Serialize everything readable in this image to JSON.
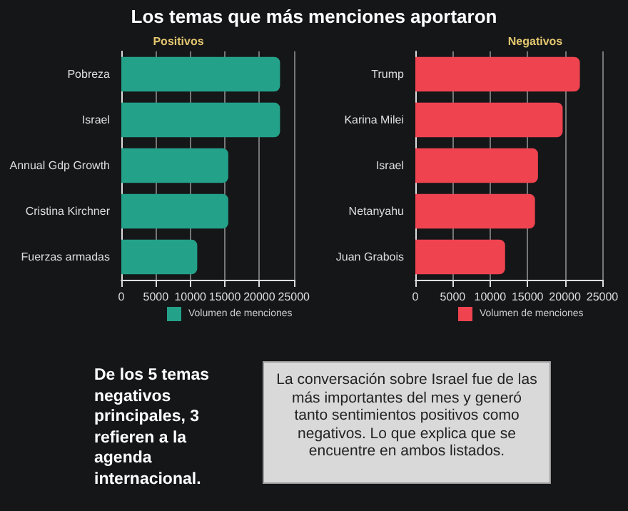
{
  "chart_data": [
    {
      "type": "bar",
      "orientation": "horizontal",
      "title": "Positivos",
      "categories": [
        "Pobreza",
        "Israel",
        "Annual Gdp Growth",
        "Cristina Kirchner",
        "Fuerzas armadas"
      ],
      "series": [
        {
          "name": "Volumen de menciones",
          "color": "#23a189",
          "values": [
            23000,
            23000,
            15500,
            15500,
            11000
          ]
        }
      ],
      "xlim": [
        0,
        25000
      ],
      "xticks": [
        0,
        5000,
        10000,
        15000,
        20000,
        25000
      ],
      "grid": "x",
      "legend": "bottom",
      "annotations": [
        "Los temas que más menciones aportaron",
        "De los 5 temas negativos principales, 3 refieren a la agenda internacional.",
        "La conversación sobre Israel fue de las más importantes del mes y generó tanto sentimientos positivos como negativos. Lo que explica que se encuentre en ambos listados."
      ]
    },
    {
      "type": "bar",
      "orientation": "horizontal",
      "title": "Negativos",
      "categories": [
        "Trump",
        "Karina Milei",
        "Israel",
        "Netanyahu",
        "Juan Grabois"
      ],
      "series": [
        {
          "name": "Volumen de menciones",
          "color": "#ef4350",
          "values": [
            22000,
            19700,
            16400,
            16000,
            12000
          ]
        }
      ],
      "xlim": [
        0,
        25000
      ],
      "xticks": [
        0,
        5000,
        10000,
        15000,
        20000,
        25000
      ],
      "grid": "x",
      "legend": "bottom"
    }
  ]
}
